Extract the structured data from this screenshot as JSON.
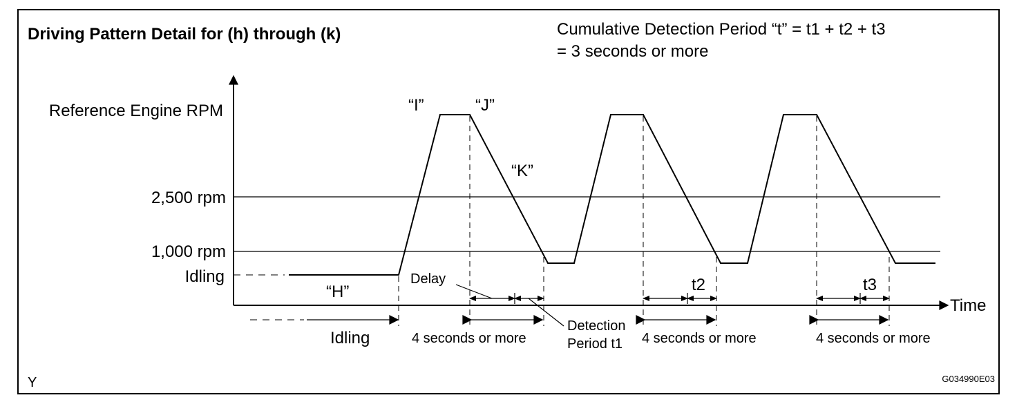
{
  "title": "Driving Pattern Detail for (h) through (k)",
  "note_line1": "Cumulative Detection Period “t” = t1 + t2 + t3",
  "note_line2": "= 3 seconds or more",
  "y_axis": {
    "reference": "Reference Engine RPM",
    "rpm_2500": "2,500 rpm",
    "rpm_1000": "1,000 rpm",
    "idling": "Idling"
  },
  "x_axis_label": "Time",
  "point_labels": {
    "H": "“H”",
    "I": "“I”",
    "J": "“J”",
    "K": "“K”"
  },
  "delay_label": "Delay",
  "detection_line1": "Detection",
  "detection_line2": "Period t1",
  "t2_label": "t2",
  "t3_label": "t3",
  "bottom_idling": "Idling",
  "duration_label": "4 seconds or more",
  "corner_left": "Y",
  "corner_right": "G034990E03"
}
